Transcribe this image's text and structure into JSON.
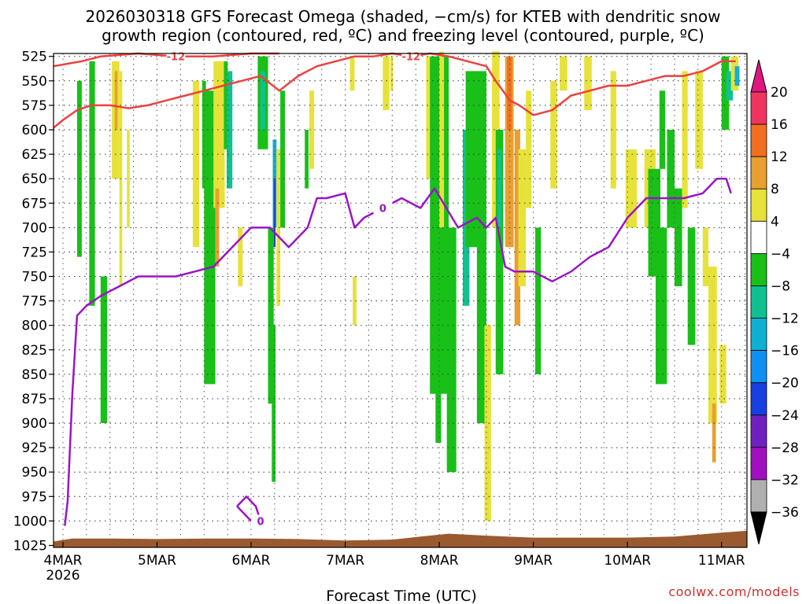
{
  "chart_data": {
    "type": "heatmap",
    "title_lines": [
      "2026030318 GFS Forecast Omega (shaded, −cm/s) for KTEB with dendritic snow",
      "growth region (contoured, red, ºC) and freezing level (contoured, purple, ºC)"
    ],
    "xlabel": "Forecast Time (UTC)",
    "credit": "coolwx.com/models",
    "y_axis": {
      "scale": "pressure (inverted)",
      "ylim": [
        1027,
        522
      ],
      "ticks": [
        {
          "v": 525,
          "t": "525"
        },
        {
          "v": 550,
          "t": "550"
        },
        {
          "v": 575,
          "t": "575"
        },
        {
          "v": 600,
          "t": "600"
        },
        {
          "v": 625,
          "t": "625"
        },
        {
          "v": 650,
          "t": "650"
        },
        {
          "v": 675,
          "t": "675"
        },
        {
          "v": 700,
          "t": "700"
        },
        {
          "v": 725,
          "t": "725"
        },
        {
          "v": 750,
          "t": "750"
        },
        {
          "v": 775,
          "t": "775"
        },
        {
          "v": 800,
          "t": "800"
        },
        {
          "v": 825,
          "t": "825"
        },
        {
          "v": 850,
          "t": "850"
        },
        {
          "v": 875,
          "t": "875"
        },
        {
          "v": 900,
          "t": "900"
        },
        {
          "v": 925,
          "t": "925"
        },
        {
          "v": 950,
          "t": "950"
        },
        {
          "v": 975,
          "t": "975"
        },
        {
          "v": 1000,
          "t": "1000"
        },
        {
          "v": 1025,
          "t": "1025"
        }
      ]
    },
    "x_axis": {
      "unit": "days after 4MAR 00UTC",
      "xlim": [
        -0.1,
        7.27
      ],
      "ticks": [
        {
          "v": 0,
          "t": "4MAR",
          "sub": "2026"
        },
        {
          "v": 1,
          "t": "5MAR"
        },
        {
          "v": 2,
          "t": "6MAR"
        },
        {
          "v": 3,
          "t": "7MAR"
        },
        {
          "v": 4,
          "t": "8MAR"
        },
        {
          "v": 5,
          "t": "9MAR"
        },
        {
          "v": 6,
          "t": "10MAR"
        },
        {
          "v": 7,
          "t": "11MAR"
        }
      ],
      "grid_every": 0.25
    },
    "grid": true,
    "colorbar": {
      "levels": [
        "20",
        "16",
        "12",
        "8",
        "4",
        "−4",
        "−8",
        "−12",
        "−16",
        "−20",
        "−24",
        "−28",
        "−32",
        "−36"
      ],
      "colors": [
        "#ee3560",
        "#f07020",
        "#e8a030",
        "#e6e23a",
        "#ffffff",
        "#18c018",
        "#10c090",
        "#10b0d0",
        "#1090f0",
        "#1840e0",
        "#7020c0",
        "#a010c0",
        "#b0b0b0"
      ],
      "top_color": "#e0157f",
      "bottom_color": "#000000"
    },
    "shading": [
      {
        "x": [
          0.15,
          0.2
        ],
        "p": [
          550,
          730
        ],
        "c": "#18c018"
      },
      {
        "x": [
          0.28,
          0.34
        ],
        "p": [
          530,
          780
        ],
        "c": "#18c018"
      },
      {
        "x": [
          0.4,
          0.47
        ],
        "p": [
          750,
          900
        ],
        "c": "#18c018"
      },
      {
        "x": [
          0.52,
          0.6
        ],
        "p": [
          530,
          650
        ],
        "c": "#e6e23a"
      },
      {
        "x": [
          0.55,
          0.58
        ],
        "p": [
          540,
          600
        ],
        "c": "#e8a030"
      },
      {
        "x": [
          0.6,
          0.63
        ],
        "p": [
          540,
          760
        ],
        "c": "#e6e23a"
      },
      {
        "x": [
          0.68,
          0.71
        ],
        "p": [
          600,
          700
        ],
        "c": "#e6e23a"
      },
      {
        "x": [
          1.38,
          1.45
        ],
        "p": [
          550,
          720
        ],
        "c": "#e6e23a"
      },
      {
        "x": [
          1.48,
          1.52
        ],
        "p": [
          550,
          660
        ],
        "c": "#18c018"
      },
      {
        "x": [
          1.5,
          1.62
        ],
        "p": [
          560,
          860
        ],
        "c": "#18c018"
      },
      {
        "x": [
          1.6,
          1.72
        ],
        "p": [
          530,
          680
        ],
        "c": "#e6e23a"
      },
      {
        "x": [
          1.62,
          1.66
        ],
        "p": [
          660,
          740
        ],
        "c": "#e8a030"
      },
      {
        "x": [
          1.71,
          1.75
        ],
        "p": [
          530,
          620
        ],
        "c": "#18c018"
      },
      {
        "x": [
          1.74,
          1.8
        ],
        "p": [
          540,
          660
        ],
        "c": "#10c090"
      },
      {
        "x": [
          1.86,
          1.91
        ],
        "p": [
          700,
          760
        ],
        "c": "#e6e23a"
      },
      {
        "x": [
          2.07,
          2.18
        ],
        "p": [
          525,
          620
        ],
        "c": "#18c018"
      },
      {
        "x": [
          2.1,
          2.15
        ],
        "p": [
          540,
          600
        ],
        "c": "#10c090"
      },
      {
        "x": [
          2.18,
          2.24
        ],
        "p": [
          700,
          880
        ],
        "c": "#18c018"
      },
      {
        "x": [
          2.22,
          2.26
        ],
        "p": [
          800,
          960
        ],
        "c": "#18c018"
      },
      {
        "x": [
          2.23,
          2.27
        ],
        "p": [
          610,
          700
        ],
        "c": "#10b0d0"
      },
      {
        "x": [
          2.24,
          2.26
        ],
        "p": [
          650,
          720
        ],
        "c": "#1840e0"
      },
      {
        "x": [
          2.27,
          2.31
        ],
        "p": [
          620,
          780
        ],
        "c": "#e6e23a"
      },
      {
        "x": [
          2.31,
          2.36
        ],
        "p": [
          560,
          700
        ],
        "c": "#18c018"
      },
      {
        "x": [
          2.57,
          2.61
        ],
        "p": [
          600,
          660
        ],
        "c": "#18c018"
      },
      {
        "x": [
          2.62,
          2.67
        ],
        "p": [
          560,
          640
        ],
        "c": "#e6e23a"
      },
      {
        "x": [
          3.05,
          3.1
        ],
        "p": [
          525,
          560
        ],
        "c": "#e6e23a"
      },
      {
        "x": [
          3.08,
          3.12
        ],
        "p": [
          750,
          800
        ],
        "c": "#e6e23a"
      },
      {
        "x": [
          3.4,
          3.47
        ],
        "p": [
          525,
          580
        ],
        "c": "#e6e23a"
      },
      {
        "x": [
          3.48,
          3.51
        ],
        "p": [
          525,
          560
        ],
        "c": "#e6e23a"
      },
      {
        "x": [
          3.86,
          3.92
        ],
        "p": [
          525,
          650
        ],
        "c": "#e6e23a"
      },
      {
        "x": [
          3.9,
          4.1
        ],
        "p": [
          525,
          870
        ],
        "c": "#18c018"
      },
      {
        "x": [
          3.96,
          4.02
        ],
        "p": [
          760,
          920
        ],
        "c": "#18c018"
      },
      {
        "x": [
          4.0,
          4.05
        ],
        "p": [
          520,
          700
        ],
        "c": "#e6e23a"
      },
      {
        "x": [
          4.08,
          4.18
        ],
        "p": [
          700,
          950
        ],
        "c": "#18c018"
      },
      {
        "x": [
          4.25,
          4.32
        ],
        "p": [
          600,
          780
        ],
        "c": "#10c090"
      },
      {
        "x": [
          4.28,
          4.5
        ],
        "p": [
          540,
          720
        ],
        "c": "#18c018"
      },
      {
        "x": [
          4.4,
          4.5
        ],
        "p": [
          700,
          900
        ],
        "c": "#18c018"
      },
      {
        "x": [
          4.48,
          4.55
        ],
        "p": [
          800,
          1000
        ],
        "c": "#e6e23a"
      },
      {
        "x": [
          4.56,
          4.64
        ],
        "p": [
          520,
          700
        ],
        "c": "#e6e23a"
      },
      {
        "x": [
          4.6,
          4.68
        ],
        "p": [
          600,
          850
        ],
        "c": "#18c018"
      },
      {
        "x": [
          4.62,
          4.66
        ],
        "p": [
          620,
          700
        ],
        "c": "#10c090"
      },
      {
        "x": [
          4.7,
          4.79
        ],
        "p": [
          525,
          720
        ],
        "c": "#e8a030"
      },
      {
        "x": [
          4.72,
          4.77
        ],
        "p": [
          525,
          600
        ],
        "c": "#f07020"
      },
      {
        "x": [
          4.8,
          4.86
        ],
        "p": [
          600,
          800
        ],
        "c": "#e8a030"
      },
      {
        "x": [
          4.84,
          4.92
        ],
        "p": [
          620,
          760
        ],
        "c": "#e6e23a"
      },
      {
        "x": [
          4.92,
          4.98
        ],
        "p": [
          560,
          680
        ],
        "c": "#e6e23a"
      },
      {
        "x": [
          5.02,
          5.08
        ],
        "p": [
          700,
          850
        ],
        "c": "#18c018"
      },
      {
        "x": [
          5.18,
          5.25
        ],
        "p": [
          550,
          660
        ],
        "c": "#e6e23a"
      },
      {
        "x": [
          5.28,
          5.36
        ],
        "p": [
          525,
          560
        ],
        "c": "#e6e23a"
      },
      {
        "x": [
          5.54,
          5.62
        ],
        "p": [
          525,
          580
        ],
        "c": "#e6e23a"
      },
      {
        "x": [
          5.82,
          5.88
        ],
        "p": [
          540,
          660
        ],
        "c": "#e6e23a"
      },
      {
        "x": [
          5.98,
          6.1
        ],
        "p": [
          620,
          700
        ],
        "c": "#e6e23a"
      },
      {
        "x": [
          6.18,
          6.3
        ],
        "p": [
          620,
          700
        ],
        "c": "#e6e23a"
      },
      {
        "x": [
          6.22,
          6.35
        ],
        "p": [
          640,
          750
        ],
        "c": "#18c018"
      },
      {
        "x": [
          6.3,
          6.42
        ],
        "p": [
          700,
          860
        ],
        "c": "#18c018"
      },
      {
        "x": [
          6.34,
          6.4
        ],
        "p": [
          560,
          640
        ],
        "c": "#18c018"
      },
      {
        "x": [
          6.42,
          6.5
        ],
        "p": [
          600,
          700
        ],
        "c": "#18c018"
      },
      {
        "x": [
          6.5,
          6.58
        ],
        "p": [
          660,
          760
        ],
        "c": "#18c018"
      },
      {
        "x": [
          6.58,
          6.64
        ],
        "p": [
          540,
          680
        ],
        "c": "#e6e23a"
      },
      {
        "x": [
          6.64,
          6.72
        ],
        "p": [
          700,
          820
        ],
        "c": "#18c018"
      },
      {
        "x": [
          6.72,
          6.8
        ],
        "p": [
          540,
          640
        ],
        "c": "#e6e23a"
      },
      {
        "x": [
          6.8,
          6.86
        ],
        "p": [
          700,
          760
        ],
        "c": "#e6e23a"
      },
      {
        "x": [
          6.86,
          6.95
        ],
        "p": [
          740,
          900
        ],
        "c": "#e6e23a"
      },
      {
        "x": [
          6.9,
          6.94
        ],
        "p": [
          880,
          940
        ],
        "c": "#e8a030"
      },
      {
        "x": [
          6.98,
          7.05
        ],
        "p": [
          820,
          880
        ],
        "c": "#e6e23a"
      },
      {
        "x": [
          7.0,
          7.08
        ],
        "p": [
          525,
          600
        ],
        "c": "#18c018"
      },
      {
        "x": [
          7.05,
          7.12
        ],
        "p": [
          540,
          570
        ],
        "c": "#10c090"
      },
      {
        "x": [
          7.1,
          7.18
        ],
        "p": [
          525,
          560
        ],
        "c": "#e6e23a"
      },
      {
        "x": [
          7.14,
          7.19
        ],
        "p": [
          535,
          555
        ],
        "c": "#10b0d0"
      }
    ],
    "terrain": {
      "color": "#9a5a30",
      "x": [
        -0.1,
        0.1,
        0.5,
        1.0,
        1.5,
        2.0,
        2.5,
        3.0,
        3.5,
        3.8,
        4.1,
        4.5,
        5.0,
        5.5,
        6.0,
        6.5,
        7.0,
        7.27
      ],
      "pressure": [
        1021,
        1018,
        1018,
        1018.5,
        1018,
        1018,
        1018.5,
        1020,
        1019,
        1016,
        1013,
        1015,
        1017,
        1017,
        1017,
        1016,
        1012,
        1010
      ]
    },
    "series": [
      {
        "color": "#9a14c8",
        "contour_label": "0",
        "segments": [
          {
            "x": [
              0.02,
              0.05,
              0.1,
              0.15,
              0.25,
              0.4,
              0.6,
              0.8,
              1.0,
              1.2,
              1.4,
              1.6,
              1.8,
              2.0,
              2.2,
              2.4,
              2.6,
              2.7,
              2.8,
              3.0,
              3.1,
              3.2,
              3.4,
              3.6,
              3.8,
              3.95,
              4.2,
              4.4,
              4.5,
              4.6,
              4.7,
              4.8,
              5.0,
              5.2,
              5.4,
              5.6,
              5.8,
              6.0,
              6.2,
              6.4,
              6.6,
              6.8,
              6.95,
              7.05,
              7.1
            ],
            "p": [
              1005,
              980,
              870,
              790,
              780,
              770,
              760,
              750,
              750,
              750,
              745,
              740,
              720,
              700,
              700,
              720,
              700,
              670,
              670,
              665,
              700,
              690,
              680,
              670,
              680,
              660,
              700,
              690,
              700,
              690,
              740,
              745,
              745,
              755,
              745,
              730,
              720,
              690,
              670,
              670,
              670,
              665,
              650,
              650,
              665
            ]
          },
          {
            "x": [
              1.85,
              1.95,
              2.05,
              2.1,
              2.0,
              1.85
            ],
            "p": [
              985,
              975,
              985,
              1000,
              1000,
              985
            ]
          }
        ]
      },
      {
        "color": "#ee4040",
        "contour_label": "-12",
        "segments": [
          {
            "x": [
              -0.1,
              0.0,
              0.15,
              0.3,
              0.5,
              0.7,
              0.9,
              1.1,
              1.3,
              1.5,
              1.7,
              1.9,
              2.1,
              2.3,
              2.5,
              2.7,
              2.9,
              3.1,
              3.3,
              3.5,
              3.7,
              3.9,
              4.1,
              4.3,
              4.5,
              4.6,
              4.75,
              4.85,
              5.0,
              5.2,
              5.4,
              5.6,
              5.8,
              6.0,
              6.2,
              6.4,
              6.6,
              6.8,
              7.0,
              7.15
            ],
            "p": [
              598,
              590,
              580,
              575,
              575,
              578,
              575,
              570,
              565,
              560,
              555,
              550,
              545,
              560,
              545,
              535,
              530,
              525,
              525,
              522,
              525,
              522,
              525,
              530,
              535,
              550,
              570,
              575,
              585,
              580,
              565,
              560,
              555,
              555,
              550,
              545,
              545,
              540,
              530,
              530
            ]
          },
          {
            "x": [
              -0.1,
              0.2,
              0.4,
              0.8,
              1.2,
              1.6,
              2.0,
              2.3
            ],
            "p": [
              535,
              530,
              525,
              522,
              525,
              525,
              522,
              522
            ]
          }
        ]
      }
    ]
  }
}
